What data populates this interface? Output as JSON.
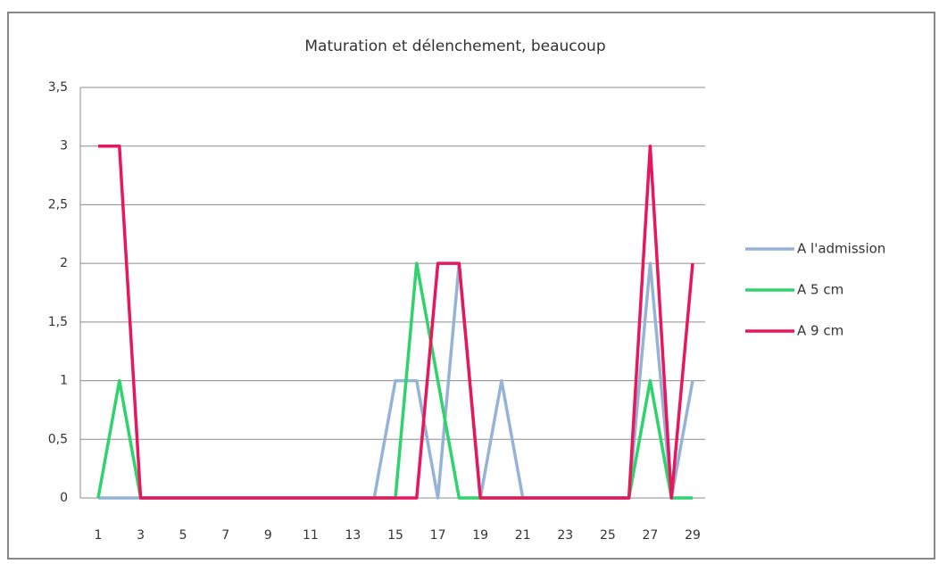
{
  "chart_data": {
    "type": "line",
    "title": "Maturation et délenchement, beaucoup",
    "categories": [
      "1",
      null,
      "3",
      null,
      "5",
      null,
      "7",
      null,
      "9",
      null,
      "11",
      null,
      "13",
      null,
      "15",
      null,
      "17",
      null,
      "19",
      null,
      "21",
      null,
      "23",
      null,
      "25",
      null,
      "27",
      null,
      "29"
    ],
    "series": [
      {
        "name": "A l'admission",
        "color": "#95b3d7",
        "values": [
          0,
          0,
          0,
          0,
          0,
          0,
          0,
          0,
          0,
          0,
          0,
          0,
          0,
          0,
          1,
          1,
          0,
          2,
          0,
          1,
          0,
          0,
          0,
          0,
          0,
          0,
          2,
          0,
          1
        ]
      },
      {
        "name": "A 5 cm",
        "color": "#2ed36c",
        "values": [
          0,
          1,
          0,
          0,
          0,
          0,
          0,
          0,
          0,
          0,
          0,
          0,
          0,
          0,
          0,
          2,
          1,
          0,
          0,
          0,
          0,
          0,
          0,
          0,
          0,
          0,
          1,
          0,
          0
        ]
      },
      {
        "name": "A 9 cm",
        "color": "#e8175d",
        "values": [
          3,
          3,
          0,
          0,
          0,
          0,
          0,
          0,
          0,
          0,
          0,
          0,
          0,
          0,
          0,
          0,
          2,
          2,
          0,
          0,
          0,
          0,
          0,
          0,
          0,
          0,
          3,
          0,
          2
        ]
      }
    ],
    "ylim": [
      0,
      3.5
    ],
    "yticks": [
      0,
      {
        "value": 0.5,
        "label": "0,5"
      },
      1,
      {
        "value": 1.5,
        "label": "1,5"
      },
      2,
      {
        "value": 2.5,
        "label": "2,5"
      },
      3,
      {
        "value": 3.5,
        "label": "3,5"
      }
    ],
    "grid": true,
    "legend": "right"
  }
}
